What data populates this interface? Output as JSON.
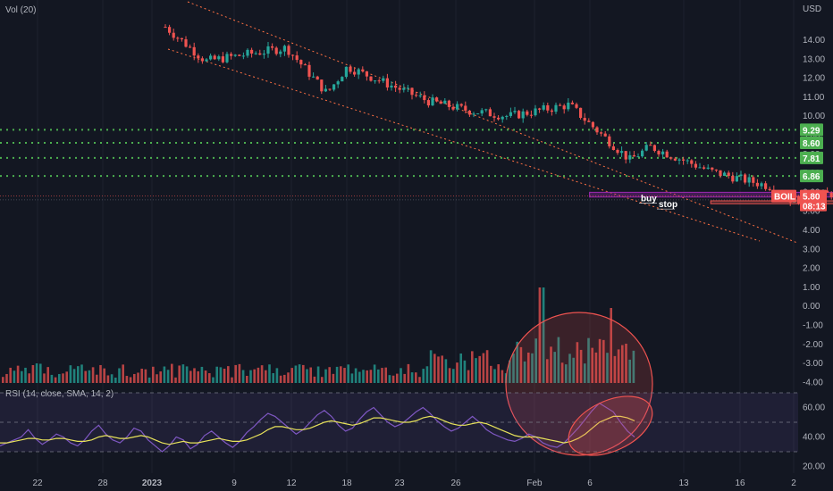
{
  "top_left_label": "Vol (20)",
  "currency": "USD",
  "rsi_label": "RSI (14, close, SMA, 14, 2)",
  "colors": {
    "background": "#131722",
    "up": "#26a69a",
    "down": "#ef5350",
    "level_line": "#4caf50",
    "channel": "#ff7043",
    "box": "#9c27b0",
    "rsi_line": "#7e57c2",
    "rsi_ma": "#e8e35a"
  },
  "chart_data": [
    {
      "type": "candlestick",
      "symbol": "BOIL",
      "x_ticks": [
        "22",
        "28",
        "2023",
        "9",
        "12",
        "18",
        "23",
        "26",
        "Feb",
        "6",
        "13",
        "16",
        "2"
      ],
      "y_ticks": [
        "14.00",
        "13.00",
        "12.00",
        "11.00",
        "10.00",
        "9.00",
        "8.00",
        "7.00",
        "6.00",
        "5.00",
        "4.00",
        "3.00",
        "2.00",
        "1.00",
        "0.00",
        "-1.00",
        "-2.00",
        "-3.00",
        "-4.00"
      ],
      "ylim": [
        -4.3,
        15.2
      ],
      "approx_close_path": [
        {
          "x": "2023-01-03",
          "y": 14.7
        },
        {
          "x": "2023-01-05",
          "y": 12.9
        },
        {
          "x": "2023-01-09",
          "y": 13.6
        },
        {
          "x": "2023-01-11",
          "y": 11.2
        },
        {
          "x": "2023-01-12",
          "y": 12.6
        },
        {
          "x": "2023-01-16",
          "y": 10.8
        },
        {
          "x": "2023-01-18",
          "y": 10.3
        },
        {
          "x": "2023-01-20",
          "y": 10.0
        },
        {
          "x": "2023-01-23",
          "y": 10.6
        },
        {
          "x": "2023-01-24",
          "y": 9.6
        },
        {
          "x": "2023-01-26",
          "y": 7.7
        },
        {
          "x": "2023-01-27",
          "y": 8.4
        },
        {
          "x": "2023-01-30",
          "y": 7.1
        },
        {
          "x": "2023-02-02",
          "y": 6.3
        },
        {
          "x": "2023-02-03",
          "y": 5.6
        },
        {
          "x": "2023-02-06",
          "y": 6.1
        },
        {
          "x": "2023-02-08",
          "y": 6.7
        },
        {
          "x": "2023-02-09",
          "y": 5.8
        }
      ],
      "horizontal_levels": [
        {
          "value": 9.29,
          "label": "9.29"
        },
        {
          "value": 8.6,
          "label": "8.60"
        },
        {
          "value": 7.81,
          "label": "7.81"
        },
        {
          "value": 6.86,
          "label": "6.86"
        }
      ],
      "last_price": {
        "symbol": "BOIL",
        "value": "5.80",
        "countdown": "08:13"
      },
      "annotations": [
        {
          "text": "buy",
          "price": 5.75
        },
        {
          "text": "stop",
          "price": 5.45
        }
      ],
      "boxes": [
        {
          "name": "buy-zone",
          "from": "2023-01-24",
          "to": "2023-02-15",
          "top": 6.0,
          "bottom": 5.75
        },
        {
          "name": "stop-zone",
          "from": "2023-01-30",
          "to": "2023-02-12",
          "top": 5.55,
          "bottom": 5.4
        }
      ],
      "volume_highlight": "circle",
      "legend": "none"
    },
    {
      "type": "line",
      "name": "RSI",
      "y_ticks": [
        "60.00",
        "40.00",
        "20.00"
      ],
      "ylim": [
        15,
        72
      ],
      "bands": [
        30,
        50,
        70
      ],
      "rsi_values": [
        34,
        36,
        38,
        40,
        45,
        39,
        35,
        38,
        42,
        40,
        36,
        34,
        38,
        44,
        48,
        42,
        38,
        36,
        40,
        46,
        44,
        38,
        34,
        30,
        34,
        40,
        38,
        32,
        35,
        41,
        44,
        40,
        36,
        33,
        37,
        43,
        47,
        52,
        56,
        54,
        50,
        46,
        42,
        45,
        50,
        55,
        58,
        54,
        48,
        44,
        46,
        52,
        57,
        60,
        55,
        50,
        47,
        49,
        53,
        57,
        60,
        56,
        51,
        47,
        44,
        46,
        50,
        54,
        50,
        45,
        42,
        40,
        38,
        37,
        39,
        42,
        40,
        36,
        34,
        33,
        36,
        41,
        46,
        52,
        58,
        63,
        60,
        57,
        50,
        44,
        40
      ],
      "ma_values": [
        36,
        36,
        37,
        38,
        39,
        39,
        38,
        38,
        39,
        39,
        38,
        37,
        37,
        38,
        40,
        41,
        40,
        39,
        39,
        40,
        41,
        40,
        38,
        36,
        35,
        36,
        37,
        36,
        36,
        37,
        38,
        39,
        38,
        37,
        37,
        38,
        40,
        42,
        45,
        47,
        47,
        46,
        45,
        45,
        46,
        48,
        50,
        51,
        50,
        49,
        48,
        49,
        51,
        53,
        53,
        52,
        51,
        50,
        50,
        51,
        53,
        54,
        53,
        51,
        49,
        48,
        48,
        49,
        50,
        49,
        47,
        45,
        43,
        41,
        40,
        40,
        40,
        39,
        38,
        37,
        36,
        37,
        39,
        42,
        46,
        50,
        52,
        54,
        54,
        53,
        51
      ],
      "legend": "none"
    }
  ]
}
